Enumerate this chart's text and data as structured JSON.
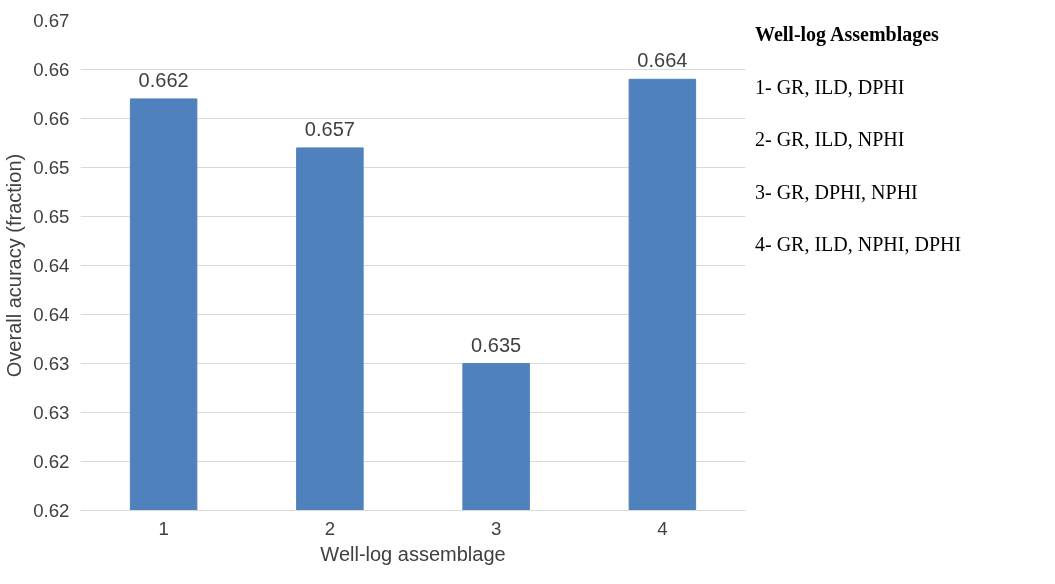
{
  "chart_data": {
    "type": "bar",
    "categories": [
      "1",
      "2",
      "3",
      "4"
    ],
    "values": [
      0.662,
      0.657,
      0.635,
      0.664
    ],
    "color": "#4f81bd",
    "data_labels": true,
    "xlabel": "Well-log assemblage",
    "ylabel": "Overall acuracy (fraction)",
    "ylim": [
      0.62,
      0.67
    ],
    "yticks": [
      {
        "value": 0.62,
        "label": "0.62"
      },
      {
        "value": 0.625,
        "label": "0.62"
      },
      {
        "value": 0.63,
        "label": "0.63"
      },
      {
        "value": 0.635,
        "label": "0.63"
      },
      {
        "value": 0.64,
        "label": "0.64"
      },
      {
        "value": 0.645,
        "label": "0.64"
      },
      {
        "value": 0.65,
        "label": "0.65"
      },
      {
        "value": 0.655,
        "label": "0.65"
      },
      {
        "value": 0.66,
        "label": "0.66"
      },
      {
        "value": 0.665,
        "label": "0.66"
      },
      {
        "value": 0.67,
        "label": "0.67"
      }
    ],
    "grid": "y",
    "annotations": [
      "Well-log Assemblages",
      "1- GR, ILD, DPHI",
      "2- GR, ILD, NPHI",
      "3- GR, DPHI, NPHI",
      "4- GR, ILD, NPHI, DPHI"
    ]
  }
}
